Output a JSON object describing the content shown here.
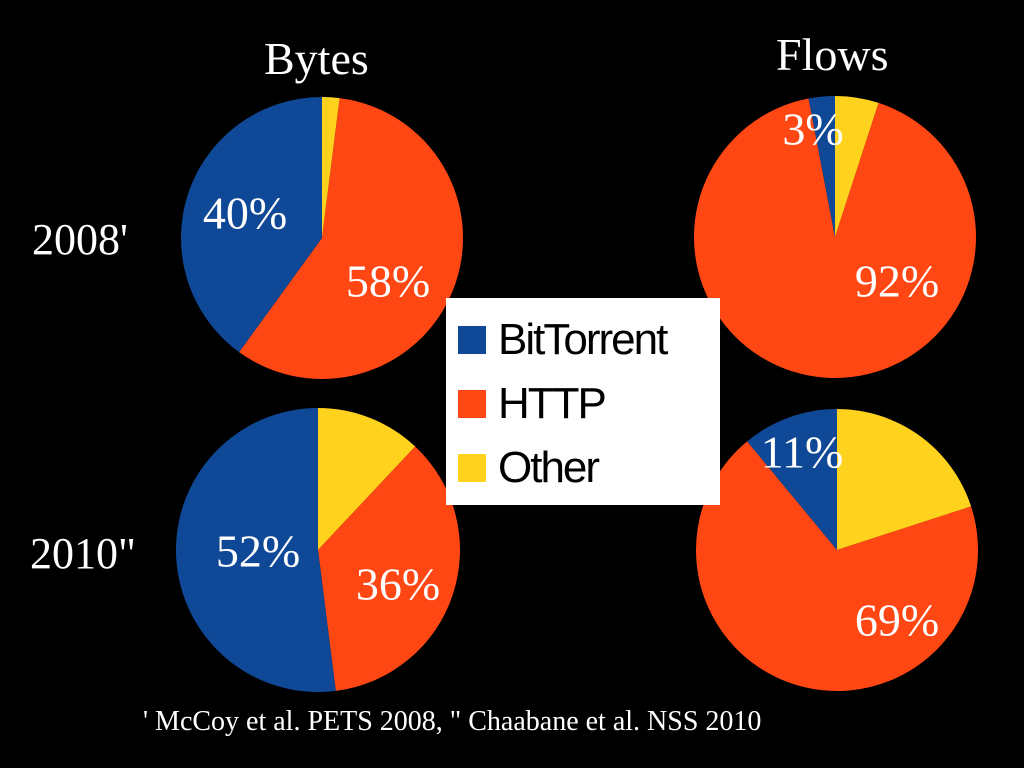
{
  "colors": {
    "BitTorrent": "#0f4896",
    "HTTP": "#ff4714",
    "Other": "#ffd21e",
    "background": "#000000"
  },
  "columns": {
    "bytes": "Bytes",
    "flows": "Flows"
  },
  "rows": {
    "r2008": "2008'",
    "r2010": "2010\""
  },
  "legend": [
    "BitTorrent",
    "HTTP",
    "Other"
  ],
  "footnote": "' McCoy et al. PETS 2008,  \" Chaabane et al. NSS 2010",
  "chart_data": [
    {
      "type": "pie",
      "column": "Bytes",
      "row": "2008'",
      "slices": [
        {
          "name": "Other",
          "value": 2
        },
        {
          "name": "HTTP",
          "value": 58
        },
        {
          "name": "BitTorrent",
          "value": 40
        }
      ],
      "labels": [
        {
          "name": "BitTorrent",
          "text": "40%"
        },
        {
          "name": "HTTP",
          "text": "58%"
        }
      ]
    },
    {
      "type": "pie",
      "column": "Flows",
      "row": "2008'",
      "slices": [
        {
          "name": "Other",
          "value": 5
        },
        {
          "name": "HTTP",
          "value": 92
        },
        {
          "name": "BitTorrent",
          "value": 3
        }
      ],
      "labels": [
        {
          "name": "BitTorrent",
          "text": "3%"
        },
        {
          "name": "HTTP",
          "text": "92%"
        }
      ]
    },
    {
      "type": "pie",
      "column": "Bytes",
      "row": "2010\"",
      "slices": [
        {
          "name": "Other",
          "value": 12
        },
        {
          "name": "HTTP",
          "value": 36
        },
        {
          "name": "BitTorrent",
          "value": 52
        }
      ],
      "labels": [
        {
          "name": "BitTorrent",
          "text": "52%"
        },
        {
          "name": "HTTP",
          "text": "36%"
        }
      ]
    },
    {
      "type": "pie",
      "column": "Flows",
      "row": "2010\"",
      "slices": [
        {
          "name": "Other",
          "value": 20
        },
        {
          "name": "HTTP",
          "value": 69
        },
        {
          "name": "BitTorrent",
          "value": 11
        }
      ],
      "labels": [
        {
          "name": "BitTorrent",
          "text": "11%"
        },
        {
          "name": "HTTP",
          "text": "69%"
        }
      ]
    }
  ]
}
